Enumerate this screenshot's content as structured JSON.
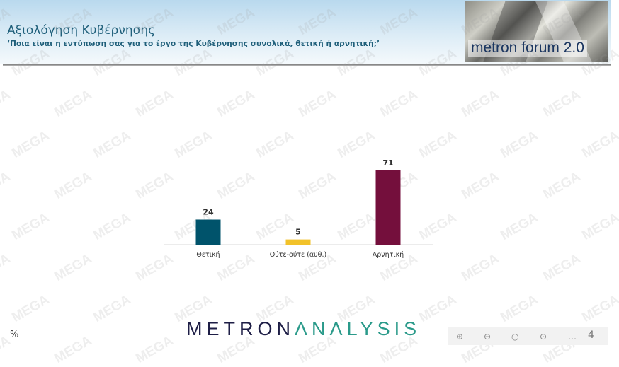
{
  "header": {
    "title": "Αξιολόγηση Κυβέρνησης",
    "subtitle": "‘Ποια είναι η εντύπωση σας για το έργο της Κυβέρνησης συνολικά, θετική ή αρνητική;’",
    "forum_label": "metron forum 2.0"
  },
  "watermark": "MEGA",
  "chart_data": {
    "type": "bar",
    "categories": [
      "Θετική",
      "Ούτε-ούτε (αυθ.)",
      "Αρνητική"
    ],
    "values": [
      24,
      5,
      71
    ],
    "colors": [
      "#00536b",
      "#f2c22a",
      "#740f3c"
    ],
    "unit_label": "%",
    "grid": false
  },
  "footer": {
    "logo_part1": "METRON",
    "logo_part2": "ΛNΛLYSIS",
    "page_number": "4",
    "controls": [
      "zoom-in-icon",
      "zoom-out-icon",
      "circle-icon",
      "target-icon",
      "more-icon"
    ]
  }
}
